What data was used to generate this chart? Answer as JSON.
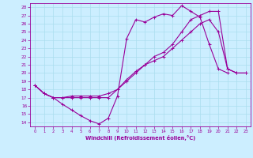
{
  "xlabel": "Windchill (Refroidissement éolien,°C)",
  "bg_color": "#cceeff",
  "grid_color": "#aaddee",
  "line_color": "#990099",
  "xlim": [
    -0.5,
    23.5
  ],
  "ylim": [
    13.5,
    28.5
  ],
  "xticks": [
    0,
    1,
    2,
    3,
    4,
    5,
    6,
    7,
    8,
    9,
    10,
    11,
    12,
    13,
    14,
    15,
    16,
    17,
    18,
    19,
    20,
    21,
    22,
    23
  ],
  "yticks": [
    14,
    15,
    16,
    17,
    18,
    19,
    20,
    21,
    22,
    23,
    24,
    25,
    26,
    27,
    28
  ],
  "line1_x": [
    0,
    1,
    2,
    3,
    4,
    5,
    6,
    7,
    8,
    9,
    10,
    11,
    12,
    13,
    14,
    15,
    16,
    17,
    18,
    19,
    20,
    21
  ],
  "line1_y": [
    18.5,
    17.5,
    17.0,
    16.2,
    15.5,
    14.8,
    14.2,
    13.8,
    14.5,
    17.2,
    24.2,
    26.5,
    26.2,
    26.8,
    27.2,
    27.0,
    28.2,
    27.5,
    26.8,
    23.5,
    20.5,
    20.0
  ],
  "line2_x": [
    0,
    1,
    2,
    3,
    4,
    5,
    6,
    7,
    8,
    9,
    10,
    11,
    12,
    13,
    14,
    15,
    16,
    17,
    18,
    19,
    20,
    21,
    22,
    23
  ],
  "line2_y": [
    18.5,
    17.5,
    17.0,
    17.0,
    17.2,
    17.2,
    17.2,
    17.2,
    17.5,
    18.0,
    19.2,
    20.2,
    21.0,
    22.0,
    22.5,
    23.5,
    25.0,
    26.5,
    27.0,
    27.5,
    27.5,
    20.5,
    20.0,
    20.0
  ],
  "line3_x": [
    0,
    1,
    2,
    3,
    4,
    5,
    6,
    7,
    8,
    9,
    10,
    11,
    12,
    13,
    14,
    15,
    16,
    17,
    18,
    19,
    20,
    21,
    22,
    23
  ],
  "line3_y": [
    18.5,
    17.5,
    17.0,
    17.0,
    17.0,
    17.0,
    17.0,
    17.0,
    17.0,
    18.0,
    19.0,
    20.0,
    21.0,
    21.5,
    22.0,
    23.0,
    24.0,
    25.0,
    26.0,
    26.5,
    25.0,
    20.5,
    20.0,
    20.0
  ]
}
